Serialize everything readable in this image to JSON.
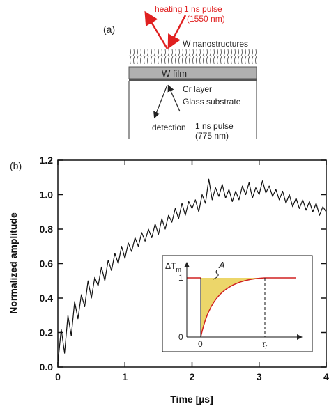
{
  "diagram": {
    "panel_label": "(a)",
    "heating": "heating",
    "pulse_in": [
      "1 ns pulse",
      "(1550 nm)"
    ],
    "nanostructures": "W nanostructures",
    "film": "W film",
    "cr": "Cr layer",
    "glass": "Glass substrate",
    "detection": "detection",
    "pulse_out": [
      "1 ns pulse",
      "(775 nm)"
    ]
  },
  "chart_data": {
    "type": "line",
    "panel_label": "(b)",
    "x_label": "Time [µs]",
    "y_label": "Normalized amplitude",
    "xlim": [
      0,
      4
    ],
    "ylim": [
      0,
      1.2
    ],
    "xticks": [
      0,
      1,
      2,
      3,
      4
    ],
    "yticks": [
      {
        "value": 0,
        "label": "0.0"
      },
      0.2,
      0.4,
      0.6,
      0.8,
      {
        "value": 1,
        "label": "1.0"
      },
      1.2
    ],
    "x": [
      0,
      0.05,
      0.1,
      0.15,
      0.2,
      0.25,
      0.3,
      0.35,
      0.4,
      0.45,
      0.5,
      0.55,
      0.6,
      0.65,
      0.7,
      0.75,
      0.8,
      0.85,
      0.9,
      0.95,
      1,
      1.05,
      1.1,
      1.15,
      1.2,
      1.25,
      1.3,
      1.35,
      1.4,
      1.45,
      1.5,
      1.55,
      1.6,
      1.65,
      1.7,
      1.75,
      1.8,
      1.85,
      1.9,
      1.95,
      2,
      2.05,
      2.1,
      2.15,
      2.2,
      2.25,
      2.3,
      2.35,
      2.4,
      2.45,
      2.5,
      2.55,
      2.6,
      2.65,
      2.7,
      2.75,
      2.8,
      2.85,
      2.9,
      2.95,
      3,
      3.05,
      3.1,
      3.15,
      3.2,
      3.25,
      3.3,
      3.35,
      3.4,
      3.45,
      3.5,
      3.55,
      3.6,
      3.65,
      3.7,
      3.75,
      3.8,
      3.85,
      3.9,
      3.95,
      4
    ],
    "series": [
      {
        "color": "#111111",
        "values": [
          0.02,
          0.22,
          0.08,
          0.3,
          0.18,
          0.38,
          0.28,
          0.42,
          0.35,
          0.5,
          0.4,
          0.52,
          0.47,
          0.58,
          0.5,
          0.62,
          0.56,
          0.66,
          0.6,
          0.7,
          0.63,
          0.72,
          0.67,
          0.75,
          0.7,
          0.78,
          0.73,
          0.8,
          0.75,
          0.83,
          0.77,
          0.86,
          0.8,
          0.88,
          0.84,
          0.92,
          0.86,
          0.95,
          0.88,
          0.96,
          0.92,
          0.97,
          0.9,
          1.0,
          0.95,
          1.09,
          0.97,
          1.04,
          0.99,
          1.06,
          0.98,
          1.03,
          0.96,
          1.02,
          0.97,
          1.05,
          1.0,
          1.07,
          0.98,
          1.04,
          1.0,
          1.08,
          1.01,
          1.05,
          0.99,
          1.03,
          0.97,
          1.02,
          0.95,
          1.0,
          0.93,
          0.98,
          0.92,
          0.97,
          0.91,
          0.96,
          0.9,
          0.95,
          0.88,
          0.93,
          0.9
        ]
      }
    ],
    "inset": {
      "y_label": "ΔT",
      "y_label_sub": "m",
      "area_label": "A",
      "y_one": "1",
      "y_zero": "0",
      "x_zero": "0",
      "x_end": "τ",
      "x_end_sub": "f"
    }
  }
}
